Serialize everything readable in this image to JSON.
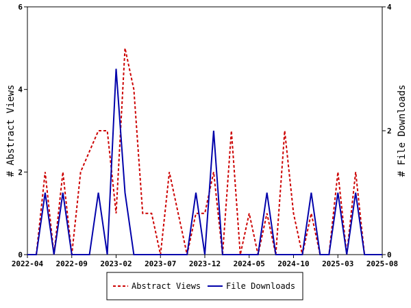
{
  "chart_data": {
    "type": "line",
    "x": [
      "2022-04",
      "2022-05",
      "2022-06",
      "2022-07",
      "2022-08",
      "2022-09",
      "2022-10",
      "2022-11",
      "2022-12",
      "2023-01",
      "2023-02",
      "2023-03",
      "2023-04",
      "2023-05",
      "2023-06",
      "2023-07",
      "2023-08",
      "2023-09",
      "2023-10",
      "2023-11",
      "2023-12",
      "2024-01",
      "2024-02",
      "2024-03",
      "2024-04",
      "2024-05",
      "2024-06",
      "2024-07",
      "2024-08",
      "2024-09",
      "2024-10",
      "2024-11",
      "2024-12",
      "2025-01",
      "2025-02",
      "2025-03",
      "2025-04",
      "2025-05",
      "2025-06",
      "2025-07",
      "2025-08"
    ],
    "xticks": [
      "2022-04",
      "2022-09",
      "2023-02",
      "2023-07",
      "2023-12",
      "2024-05",
      "2024-10",
      "2025-03",
      "2025-08"
    ],
    "xlim": [
      "2022-04",
      "2025-08"
    ],
    "series": [
      {
        "name": "Abstract Views",
        "axis": "left",
        "color": "#cc0000",
        "values": [
          0,
          0,
          2,
          0,
          2,
          0,
          2,
          2.5,
          3,
          3,
          1,
          5,
          4,
          1,
          1,
          0,
          2,
          1,
          0,
          1,
          1,
          2,
          0,
          3,
          0,
          1,
          0,
          1,
          0,
          3,
          1,
          0,
          1,
          0,
          0,
          2,
          0,
          2,
          0,
          0,
          0
        ]
      },
      {
        "name": "File Downloads",
        "axis": "right",
        "color": "#0000aa",
        "values": [
          0,
          0,
          1,
          0,
          1,
          0,
          0,
          0,
          1,
          0,
          3,
          1,
          0,
          0,
          0,
          0,
          0,
          0,
          0,
          1,
          0,
          2,
          0,
          0,
          0,
          0,
          0,
          1,
          0,
          0,
          0,
          0,
          1,
          0,
          0,
          1,
          0,
          1,
          0,
          0,
          0
        ]
      }
    ],
    "ylabel": "# Abstract Views",
    "ylim": [
      0,
      6
    ],
    "yticks": [
      0,
      2,
      4,
      6
    ],
    "y2label": "# File Downloads",
    "y2lim": [
      0,
      4
    ],
    "y2ticks": [
      0,
      2,
      4
    ],
    "grid": false,
    "legend": "bottom"
  }
}
